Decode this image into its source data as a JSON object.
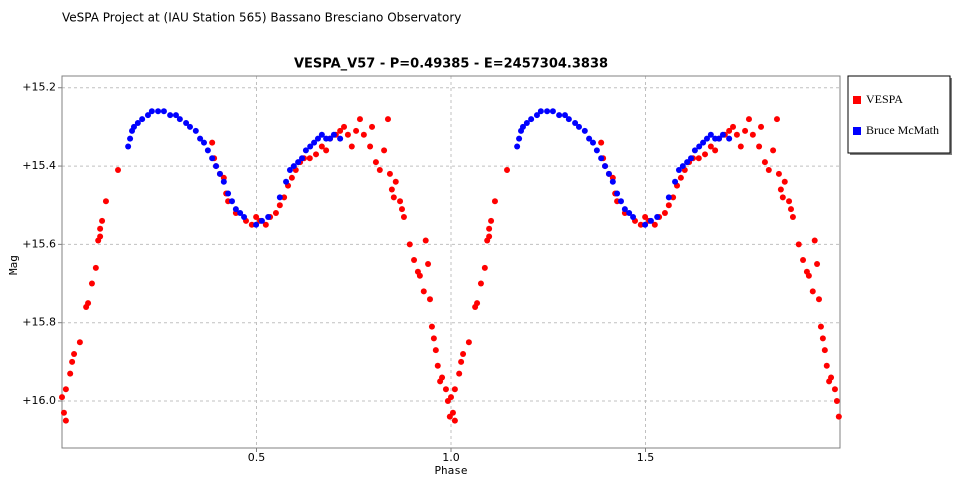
{
  "header": "VeSPA Project at (IAU Station 565) Bassano Bresciano Observatory",
  "chart_data": {
    "type": "scatter",
    "title": "VESPA_V57  -  P=0.49385  -  E=2457304.3838",
    "x_label": "Phase",
    "y_label": "Mag",
    "xlim": [
      0,
      2
    ],
    "xticks": [
      0.5,
      {
        "value": 1.0,
        "label": "1.0"
      },
      1.5
    ],
    "ylim": [
      15.17,
      16.12
    ],
    "y_inverted": true,
    "yticks": [
      {
        "value": 15.2,
        "label": "+15.2"
      },
      {
        "value": 15.4,
        "label": "+15.4"
      },
      {
        "value": 15.6,
        "label": "+15.6"
      },
      {
        "value": 15.8,
        "label": "+15.8"
      },
      {
        "value": 16.0,
        "label": "+16.0"
      }
    ],
    "grid": true,
    "legend": "right",
    "series": [
      {
        "name": "VESPA",
        "color": "#ff0000",
        "x": [
          0.0,
          0.005,
          0.01,
          0.01,
          0.021,
          0.026,
          0.031,
          0.046,
          0.062,
          0.067,
          0.077,
          0.087,
          0.093,
          0.098,
          0.098,
          0.103,
          0.113,
          0.144,
          0.386,
          0.391,
          0.396,
          0.406,
          0.416,
          0.422,
          0.427,
          0.447,
          0.473,
          0.488,
          0.499,
          0.509,
          0.524,
          0.535,
          0.55,
          0.56,
          0.571,
          0.581,
          0.591,
          0.601,
          0.612,
          0.622,
          0.637,
          0.653,
          0.668,
          0.679,
          0.689,
          0.704,
          0.715,
          0.725,
          0.735,
          0.745,
          0.756,
          0.766,
          0.776,
          0.792,
          0.797,
          0.807,
          0.817,
          0.828,
          0.838,
          0.843,
          0.848,
          0.853,
          0.858,
          0.869,
          0.874,
          0.879,
          0.894,
          0.905,
          0.915,
          0.92,
          0.93,
          0.935,
          0.941,
          0.946,
          0.951,
          0.956,
          0.961,
          0.966,
          0.972,
          0.977,
          0.987,
          0.992,
          0.997,
          1.0,
          1.005,
          1.01,
          1.01,
          1.021,
          1.026,
          1.031,
          1.046,
          1.062,
          1.067,
          1.077,
          1.087,
          1.093,
          1.098,
          1.098,
          1.103,
          1.113,
          1.144,
          1.386,
          1.391,
          1.396,
          1.406,
          1.416,
          1.422,
          1.427,
          1.447,
          1.473,
          1.488,
          1.499,
          1.509,
          1.524,
          1.535,
          1.55,
          1.56,
          1.571,
          1.581,
          1.591,
          1.601,
          1.612,
          1.622,
          1.637,
          1.653,
          1.668,
          1.679,
          1.689,
          1.704,
          1.715,
          1.725,
          1.735,
          1.745,
          1.756,
          1.766,
          1.776,
          1.792,
          1.797,
          1.807,
          1.817,
          1.828,
          1.838,
          1.843,
          1.848,
          1.853,
          1.858,
          1.869,
          1.874,
          1.879,
          1.894,
          1.905,
          1.915,
          1.92,
          1.93,
          1.935,
          1.941,
          1.946,
          1.951,
          1.956,
          1.961,
          1.966,
          1.972,
          1.977,
          1.987,
          1.992,
          1.997
        ],
        "y": [
          15.99,
          16.03,
          16.05,
          15.97,
          15.93,
          15.9,
          15.88,
          15.85,
          15.76,
          15.75,
          15.7,
          15.66,
          15.59,
          15.58,
          15.56,
          15.54,
          15.49,
          15.41,
          15.34,
          15.38,
          15.4,
          15.42,
          15.43,
          15.47,
          15.49,
          15.52,
          15.54,
          15.55,
          15.53,
          15.54,
          15.55,
          15.53,
          15.52,
          15.5,
          15.48,
          15.45,
          15.43,
          15.41,
          15.39,
          15.38,
          15.38,
          15.37,
          15.35,
          15.36,
          15.33,
          15.32,
          15.31,
          15.3,
          15.32,
          15.35,
          15.31,
          15.28,
          15.32,
          15.35,
          15.3,
          15.39,
          15.41,
          15.36,
          15.28,
          15.42,
          15.46,
          15.48,
          15.44,
          15.49,
          15.51,
          15.53,
          15.6,
          15.64,
          15.67,
          15.68,
          15.72,
          15.59,
          15.65,
          15.74,
          15.81,
          15.84,
          15.87,
          15.91,
          15.95,
          15.94,
          15.97,
          16.0,
          16.04,
          15.99,
          16.03,
          16.05,
          15.97,
          15.93,
          15.9,
          15.88,
          15.85,
          15.76,
          15.75,
          15.7,
          15.66,
          15.59,
          15.58,
          15.56,
          15.54,
          15.49,
          15.41,
          15.34,
          15.38,
          15.4,
          15.42,
          15.43,
          15.47,
          15.49,
          15.52,
          15.54,
          15.55,
          15.53,
          15.54,
          15.55,
          15.53,
          15.52,
          15.5,
          15.48,
          15.45,
          15.43,
          15.41,
          15.39,
          15.38,
          15.38,
          15.37,
          15.35,
          15.36,
          15.33,
          15.32,
          15.31,
          15.3,
          15.32,
          15.35,
          15.31,
          15.28,
          15.32,
          15.35,
          15.3,
          15.39,
          15.41,
          15.36,
          15.28,
          15.42,
          15.46,
          15.48,
          15.44,
          15.49,
          15.51,
          15.53,
          15.6,
          15.64,
          15.67,
          15.68,
          15.72,
          15.59,
          15.65,
          15.74,
          15.81,
          15.84,
          15.87,
          15.91,
          15.95,
          15.94,
          15.97,
          16.0,
          16.04
        ]
      },
      {
        "name": "Bruce McMath",
        "color": "#0000ff",
        "x": [
          0.17,
          0.175,
          0.18,
          0.185,
          0.195,
          0.206,
          0.221,
          0.231,
          0.247,
          0.262,
          0.278,
          0.293,
          0.303,
          0.319,
          0.329,
          0.344,
          0.355,
          0.365,
          0.375,
          0.386,
          0.396,
          0.406,
          0.416,
          0.427,
          0.437,
          0.447,
          0.458,
          0.468,
          0.499,
          0.514,
          0.53,
          0.56,
          0.576,
          0.586,
          0.596,
          0.607,
          0.617,
          0.627,
          0.638,
          0.648,
          0.658,
          0.668,
          0.679,
          0.689,
          0.699,
          0.715,
          1.17,
          1.175,
          1.18,
          1.185,
          1.195,
          1.206,
          1.221,
          1.231,
          1.247,
          1.262,
          1.278,
          1.293,
          1.303,
          1.319,
          1.329,
          1.344,
          1.355,
          1.365,
          1.375,
          1.386,
          1.396,
          1.406,
          1.416,
          1.427,
          1.437,
          1.447,
          1.458,
          1.468,
          1.499,
          1.514,
          1.53,
          1.56,
          1.576,
          1.586,
          1.596,
          1.607,
          1.617,
          1.627,
          1.638,
          1.648,
          1.658,
          1.668,
          1.679,
          1.689,
          1.699,
          1.715
        ],
        "y": [
          15.35,
          15.33,
          15.31,
          15.3,
          15.29,
          15.28,
          15.27,
          15.26,
          15.26,
          15.26,
          15.27,
          15.27,
          15.28,
          15.29,
          15.3,
          15.31,
          15.33,
          15.34,
          15.36,
          15.38,
          15.4,
          15.42,
          15.44,
          15.47,
          15.49,
          15.51,
          15.52,
          15.53,
          15.55,
          15.54,
          15.53,
          15.48,
          15.44,
          15.41,
          15.4,
          15.39,
          15.38,
          15.36,
          15.35,
          15.34,
          15.33,
          15.32,
          15.33,
          15.33,
          15.32,
          15.33,
          15.35,
          15.33,
          15.31,
          15.3,
          15.29,
          15.28,
          15.27,
          15.26,
          15.26,
          15.26,
          15.27,
          15.27,
          15.28,
          15.29,
          15.3,
          15.31,
          15.33,
          15.34,
          15.36,
          15.38,
          15.4,
          15.42,
          15.44,
          15.47,
          15.49,
          15.51,
          15.52,
          15.53,
          15.55,
          15.54,
          15.53,
          15.48,
          15.44,
          15.41,
          15.4,
          15.39,
          15.38,
          15.36,
          15.35,
          15.34,
          15.33,
          15.32,
          15.33,
          15.33,
          15.32,
          15.33
        ]
      }
    ]
  }
}
